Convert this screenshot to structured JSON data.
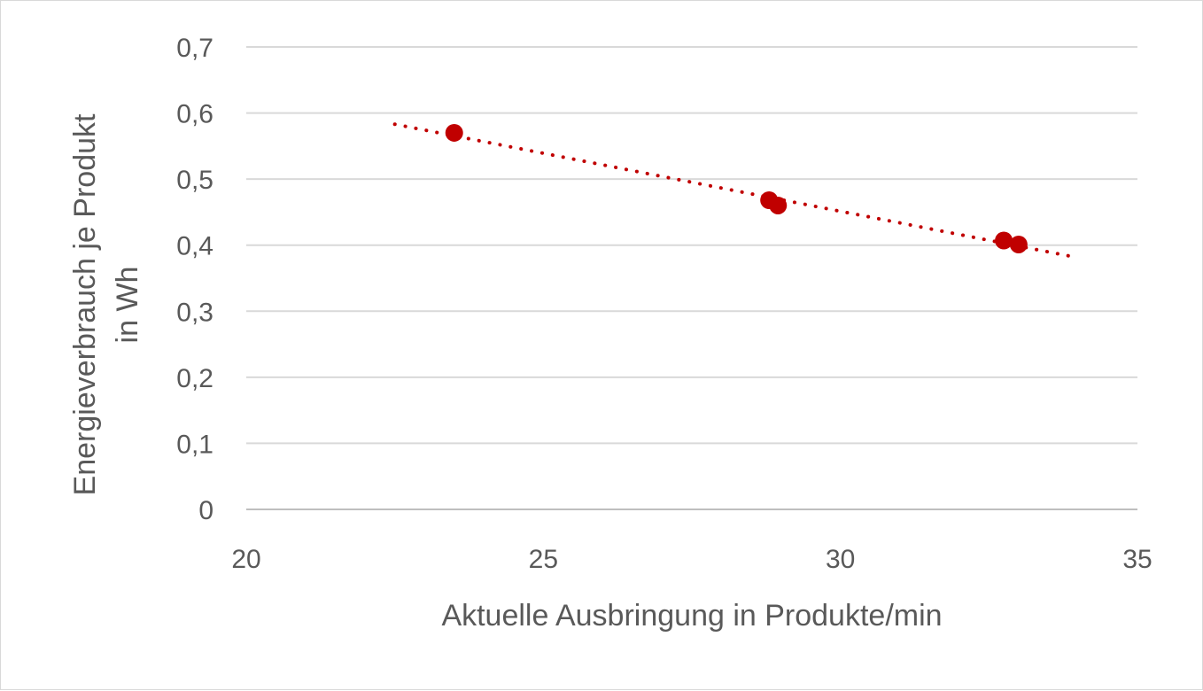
{
  "chart_data": {
    "type": "scatter",
    "title": "",
    "xlabel": "Aktuelle Ausbringung in Produkte/min",
    "ylabel_lines": [
      "Energieverbrauch je Produkt",
      "in Wh"
    ],
    "xlim": [
      20,
      35
    ],
    "ylim": [
      0,
      0.7
    ],
    "x_ticks": [
      20,
      25,
      30,
      35
    ],
    "y_ticks": [
      0,
      0.1,
      0.2,
      0.3,
      0.4,
      0.5,
      0.6,
      0.7
    ],
    "x_tick_labels": [
      "20",
      "25",
      "30",
      "35"
    ],
    "y_tick_labels": [
      "0",
      "0,1",
      "0,2",
      "0,3",
      "0,4",
      "0,5",
      "0,6",
      "0,7"
    ],
    "grid": "horizontal",
    "series": [
      {
        "color": "#c00000",
        "points": [
          {
            "x": 23.5,
            "y": 0.57
          },
          {
            "x": 28.8,
            "y": 0.468
          },
          {
            "x": 28.95,
            "y": 0.46
          },
          {
            "x": 32.75,
            "y": 0.407
          },
          {
            "x": 33.0,
            "y": 0.401
          }
        ]
      }
    ],
    "trendline": {
      "type": "linear",
      "style": "dotted",
      "color": "#c00000",
      "x_range": [
        22.5,
        34.0
      ],
      "y_range": [
        0.583,
        0.381
      ]
    }
  }
}
